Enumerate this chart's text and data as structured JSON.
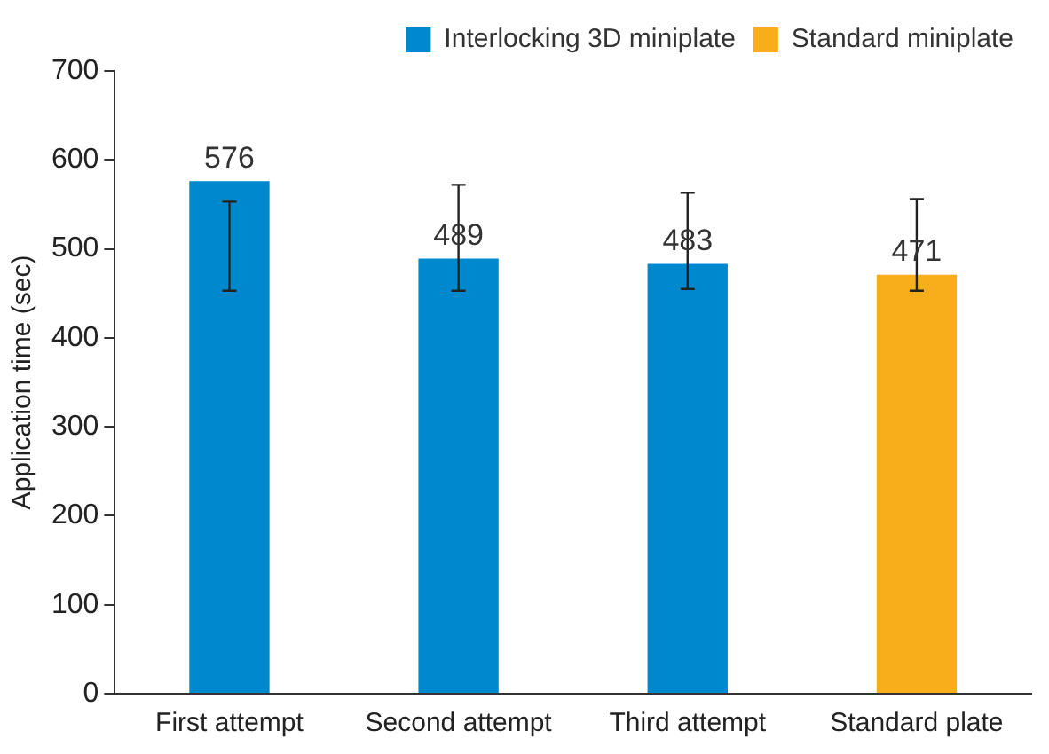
{
  "chart_data": {
    "type": "bar",
    "ylabel": "Application time (sec)",
    "categories": [
      "First attempt",
      "Second attempt",
      "Third attempt",
      "Standard plate"
    ],
    "series": [
      {
        "name": "Interlocking 3D miniplate",
        "color": "#0088cf",
        "values": [
          576,
          489,
          483,
          null
        ],
        "errors": [
          [
            453,
            553
          ],
          [
            453,
            572
          ],
          [
            455,
            563
          ],
          null
        ]
      },
      {
        "name": "Standard miniplate",
        "color": "#f8ad1b",
        "values": [
          null,
          null,
          null,
          471
        ],
        "errors": [
          null,
          null,
          null,
          [
            453,
            556
          ]
        ]
      }
    ],
    "ylim": [
      0,
      700
    ],
    "yticks": [
      0,
      100,
      200,
      300,
      400,
      500,
      600,
      700
    ],
    "grid": false,
    "legend": "top right",
    "data_labels": true
  }
}
